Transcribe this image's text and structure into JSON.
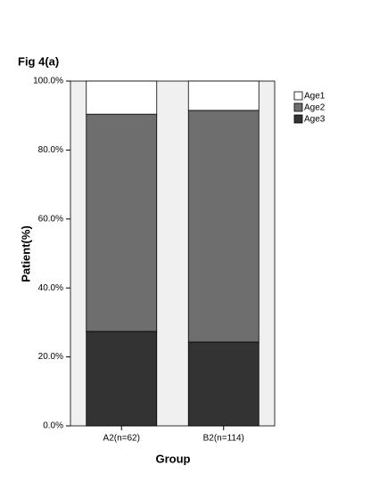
{
  "chart_data": {
    "type": "stacked_bar",
    "title": "Fig 4(a)",
    "x_label": "Group",
    "y_label": "Patient(%)",
    "categories": [
      "A2(n=62)",
      "B2(n=114)"
    ],
    "series": [
      {
        "name": "Age3",
        "color": "#333333",
        "values": [
          27.4,
          24.3
        ]
      },
      {
        "name": "Age2",
        "color": "#6e6e6e",
        "values": [
          63.0,
          67.2
        ]
      },
      {
        "name": "Age1",
        "color": "#ffffff",
        "values": [
          9.6,
          8.5
        ]
      }
    ],
    "ylim": [
      0,
      100
    ],
    "yticks": [
      {
        "value": 0,
        "label": "0.0%"
      },
      {
        "value": 20,
        "label": "20.0%"
      },
      {
        "value": 40,
        "label": "40.0%"
      },
      {
        "value": 60,
        "label": "60.0%"
      },
      {
        "value": 80,
        "label": "80.0%"
      },
      {
        "value": 100,
        "label": "100.0%"
      }
    ],
    "legend": "top-right"
  }
}
